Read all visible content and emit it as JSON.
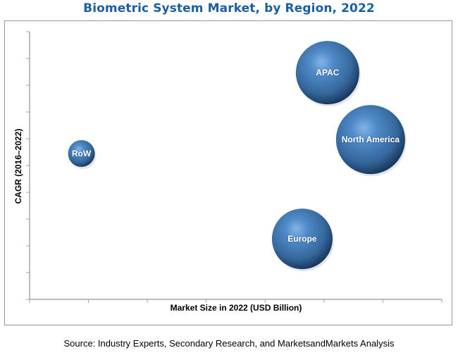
{
  "chart_data": {
    "type": "scatter",
    "subtype": "bubble",
    "title": "Biometric System Market, by Region, 2022",
    "xlabel": "Market Size in 2022 (USD Billion)",
    "ylabel": "CAGR (2016–2022)",
    "x_tick_count": 8,
    "y_tick_count": 11,
    "x_tick_labels": [],
    "y_tick_labels": [],
    "xlim": [
      0,
      7
    ],
    "ylim": [
      0,
      10
    ],
    "grid": false,
    "legend": null,
    "note": "Axes have no numeric labels; values are in relative tick units estimated from bubble positions.",
    "series": [
      {
        "name": "RoW",
        "x": 0.88,
        "y": 5.45,
        "size": 19
      },
      {
        "name": "Europe",
        "x": 4.63,
        "y": 2.26,
        "size": 43
      },
      {
        "name": "APAC",
        "x": 5.06,
        "y": 8.47,
        "size": 45
      },
      {
        "name": "North America",
        "x": 5.79,
        "y": 5.97,
        "size": 49
      }
    ],
    "bubble_color": "#3d7ab8"
  },
  "source": "Source: Industry Experts, Secondary Research, and MarketsandMarkets Analysis",
  "colors": {
    "title": "#1b5fa1",
    "axis": "#a6a6a6",
    "frame": "#9a9a9a",
    "bubble_highlight": "#7fb0e3",
    "bubble_mid": "#3d7ab8",
    "bubble_dark": "#1c416b"
  }
}
